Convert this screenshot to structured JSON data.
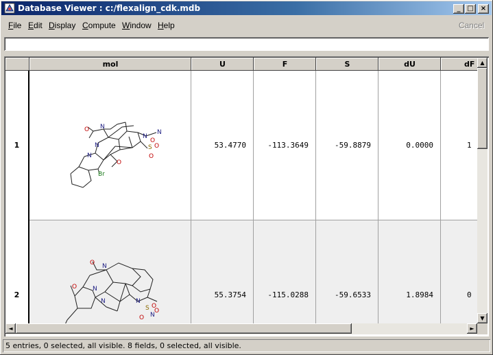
{
  "window": {
    "title": "Database Viewer : c:/flexalign_cdk.mdb"
  },
  "titlebar_buttons": {
    "minimize": "_",
    "maximize": "□",
    "close": "×"
  },
  "menu": {
    "items": [
      {
        "label": "File",
        "mnemonic": "F",
        "rest": "ile"
      },
      {
        "label": "Edit",
        "mnemonic": "E",
        "rest": "dit"
      },
      {
        "label": "Display",
        "mnemonic": "D",
        "rest": "isplay"
      },
      {
        "label": "Compute",
        "mnemonic": "C",
        "rest": "ompute"
      },
      {
        "label": "Window",
        "mnemonic": "W",
        "rest": "indow"
      },
      {
        "label": "Help",
        "mnemonic": "H",
        "rest": "elp"
      }
    ],
    "cancel_label": "Cancel"
  },
  "query": {
    "value": ""
  },
  "table": {
    "columns": [
      "mol",
      "U",
      "F",
      "S",
      "dU",
      "dF"
    ],
    "rows": [
      {
        "index": "1",
        "U": "53.4770",
        "F": "-113.3649",
        "S": "-59.8879",
        "dU": "0.0000",
        "dF": "1"
      },
      {
        "index": "2",
        "U": "55.3754",
        "F": "-115.0288",
        "S": "-59.6533",
        "dU": "1.8984",
        "dF": "0"
      }
    ]
  },
  "molecule_labels": {
    "m1": [
      "O",
      "N",
      "N",
      "N",
      "N",
      "O",
      "Br",
      "S",
      "O",
      "O",
      "O",
      "N"
    ],
    "m2": [
      "O",
      "N",
      "O",
      "N",
      "N",
      "Br",
      "N",
      "S",
      "O",
      "O",
      "O",
      "N"
    ]
  },
  "scroll_arrows": {
    "up": "▲",
    "down": "▼",
    "left": "◄",
    "right": "►"
  },
  "status": {
    "text": "5 entries, 0 selected, all visible. 8 fields, 0 selected, all visible."
  },
  "colors": {
    "title_start": "#0a246a",
    "title_end": "#a6caf0",
    "row2_bg": "#efefef",
    "oxygen": "#c00000",
    "nitrogen": "#1a1a80",
    "bromine": "#1a7a1a",
    "sulfur": "#8a6a00"
  }
}
